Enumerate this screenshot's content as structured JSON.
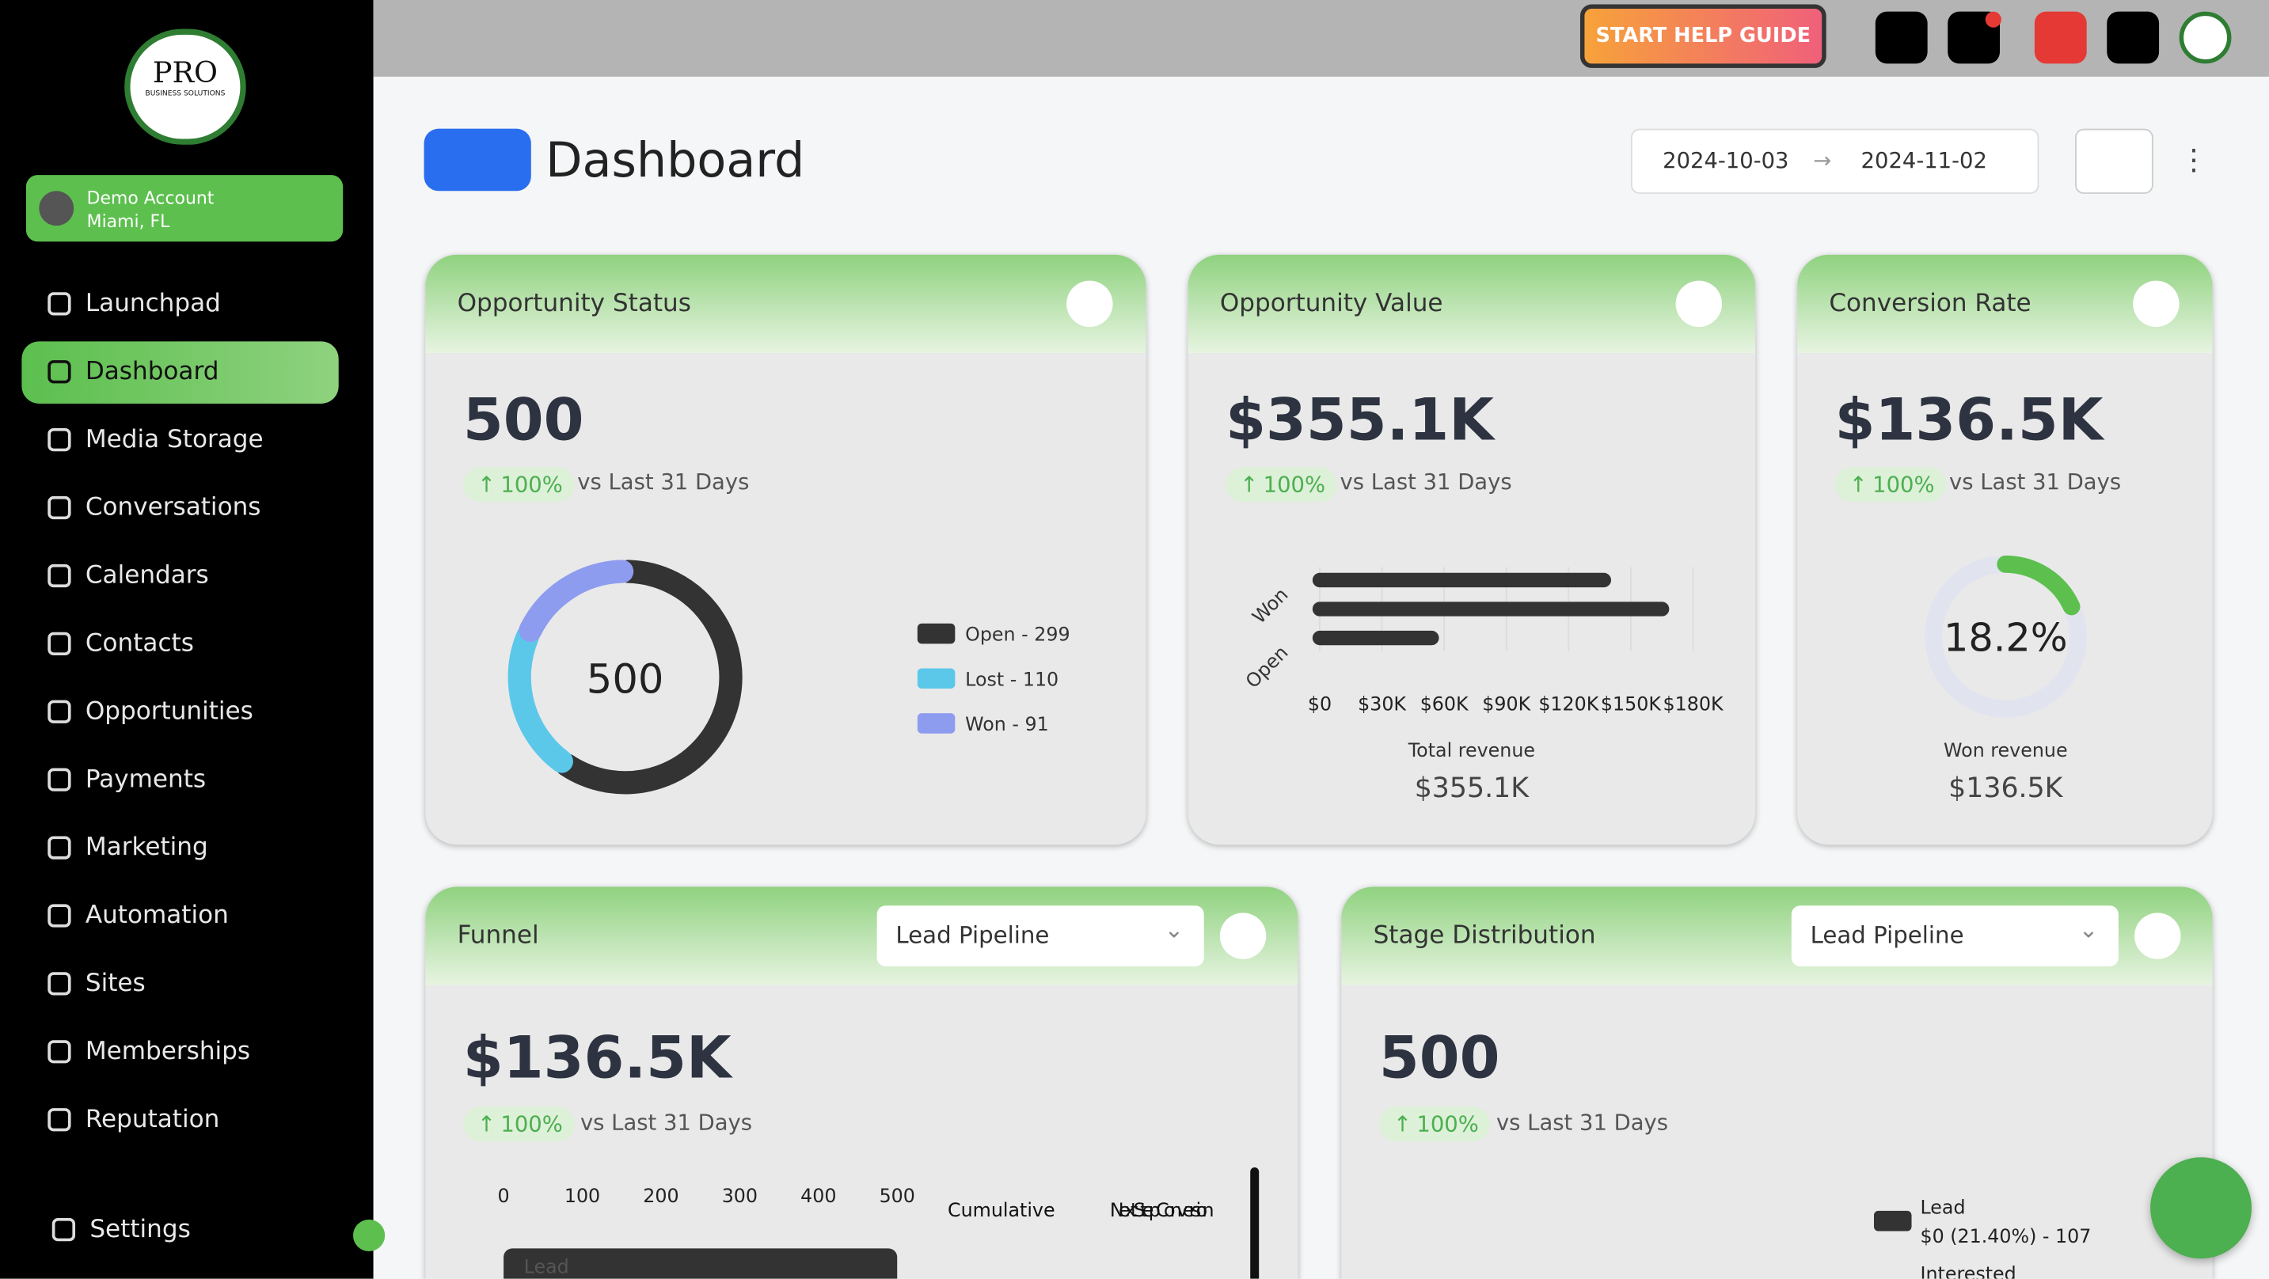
{
  "sidebar": {
    "logo": {
      "title": "PRO",
      "subtitle": "BUSINESS SOLUTIONS"
    },
    "account": {
      "name": "Demo Account",
      "location": "Miami, FL"
    },
    "nav": [
      "Launchpad",
      "Dashboard",
      "Media Storage",
      "Conversations",
      "Calendars",
      "Contacts",
      "Opportunities",
      "Payments",
      "Marketing",
      "Automation",
      "Sites",
      "Memberships",
      "Reputation"
    ],
    "active": 1,
    "settings": "Settings"
  },
  "topbar": {
    "help_button": "START HELP GUIDE"
  },
  "header": {
    "title": "Dashboard",
    "start_date": "2024-10-03",
    "end_date": "2024-11-02"
  },
  "cards": {
    "opportunity_status": {
      "title": "Opportunity Status",
      "value": "500",
      "change": "100%",
      "comparison": "vs Last 31 Days",
      "chart": {
        "type": "donut",
        "center": "500",
        "segments": [
          {
            "label": "Open - 299",
            "value": 299,
            "color": "#333333"
          },
          {
            "label": "Lost - 110",
            "value": 110,
            "color": "#5bc8ea"
          },
          {
            "label": "Won - 91",
            "value": 91,
            "color": "#8e9cf0"
          }
        ]
      }
    },
    "opportunity_value": {
      "title": "Opportunity Value",
      "value": "$355.1K",
      "change": "100%",
      "comparison": "vs Last 31 Days",
      "chart": {
        "type": "bar",
        "categories": [
          "Won",
          null,
          "Open"
        ],
        "values": [
          137000,
          165000,
          54000
        ],
        "color": "#333333",
        "xlim": [
          0,
          180000
        ],
        "xticks": [
          {
            "value": 0,
            "label": "$0"
          },
          {
            "value": 30000,
            "label": "$30K"
          },
          {
            "value": 60000,
            "label": "$60K"
          },
          {
            "value": 90000,
            "label": "$90K"
          },
          {
            "value": 120000,
            "label": "$120K"
          },
          {
            "value": 150000,
            "label": "$150K"
          },
          {
            "value": 180000,
            "label": "$180K"
          }
        ]
      },
      "footer_label": "Total revenue",
      "footer_value": "$355.1K"
    },
    "conversion_rate": {
      "title": "Conversion Rate",
      "value": "$136.5K",
      "change": "100%",
      "comparison": "vs Last 31 Days",
      "chart": {
        "type": "ring",
        "value": 18.2,
        "label": "18.2%",
        "max": 100,
        "color": "#5cbf4e"
      },
      "footer_label": "Won revenue",
      "footer_value": "$136.5K"
    },
    "funnel": {
      "title": "Funnel",
      "select": "Lead Pipeline",
      "value": "$136.5K",
      "change": "100%",
      "comparison": "vs Last 31 Days",
      "chart": {
        "type": "bar",
        "categories": [
          "Lead"
        ],
        "values": [
          500
        ],
        "xlim": [
          0,
          500
        ],
        "xticks": [
          0,
          100,
          200,
          300,
          400,
          500
        ],
        "columns": [
          "Cumulative",
          "Next Step Conversion"
        ]
      }
    },
    "stage_distribution": {
      "title": "Stage Distribution",
      "select": "Lead Pipeline",
      "value": "500",
      "change": "100%",
      "comparison": "vs Last 31 Days",
      "legend": [
        {
          "label": "Lead",
          "detail": "$0 (21.40%) - 107"
        },
        {
          "label": "Interested"
        }
      ]
    }
  }
}
